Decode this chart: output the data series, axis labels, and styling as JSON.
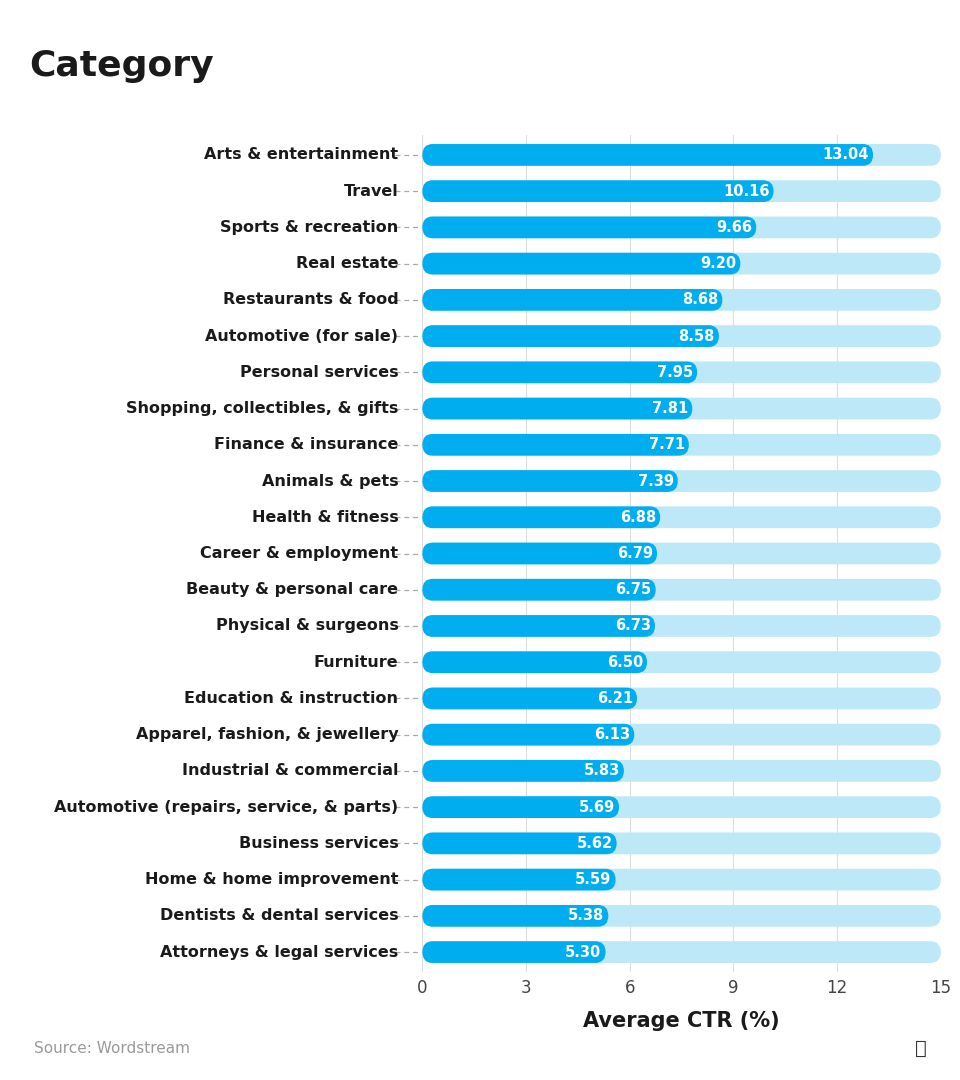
{
  "title": "Category",
  "xlabel": "Average CTR (%)",
  "categories": [
    "Arts & entertainment",
    "Travel",
    "Sports & recreation",
    "Real estate",
    "Restaurants & food",
    "Automotive (for sale)",
    "Personal services",
    "Shopping, collectibles, & gifts",
    "Finance & insurance",
    "Animals & pets",
    "Health & fitness",
    "Career & employment",
    "Beauty & personal care",
    "Physical & surgeons",
    "Furniture",
    "Education & instruction",
    "Apparel, fashion, & jewellery",
    "Industrial & commercial",
    "Automotive (repairs, service, & parts)",
    "Business services",
    "Home & home improvement",
    "Dentists & dental services",
    "Attorneys & legal services"
  ],
  "values": [
    13.04,
    10.16,
    9.66,
    9.2,
    8.68,
    8.58,
    7.95,
    7.81,
    7.71,
    7.39,
    6.88,
    6.79,
    6.75,
    6.73,
    6.5,
    6.21,
    6.13,
    5.83,
    5.69,
    5.62,
    5.59,
    5.38,
    5.3
  ],
  "bar_color": "#00AEEF",
  "bar_bg_color": "#BDE8F8",
  "bar_label_color": "#ffffff",
  "title_color": "#1a1a1a",
  "title_underline_color": "#E8194B",
  "xlabel_color": "#1a1a1a",
  "source_text": "Source: Wordstream",
  "source_bg": "#F0F3F7",
  "xlim": [
    0,
    15
  ],
  "xticks": [
    0,
    3,
    6,
    9,
    12,
    15
  ],
  "background_color": "#ffffff",
  "title_fontsize": 26,
  "xlabel_fontsize": 15,
  "bar_label_fontsize": 10.5,
  "category_fontsize": 11.5
}
